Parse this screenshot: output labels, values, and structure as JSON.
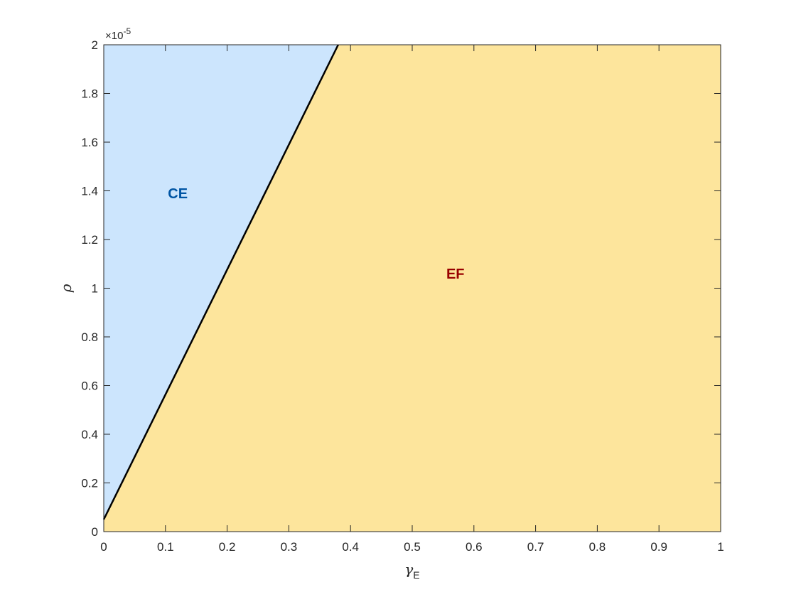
{
  "chart_data": {
    "type": "area",
    "title": "",
    "xlabel": {
      "symbol": "γ",
      "subscript": "E"
    },
    "ylabel": "ρ",
    "xlim": [
      0,
      1
    ],
    "ylim": [
      0,
      2e-05
    ],
    "y_multiplier": {
      "base": "×10",
      "exponent": "-5"
    },
    "x_ticks": [
      "0",
      "0.1",
      "0.2",
      "0.3",
      "0.4",
      "0.5",
      "0.6",
      "0.7",
      "0.8",
      "0.9",
      "1"
    ],
    "x_tick_values": [
      0,
      0.1,
      0.2,
      0.3,
      0.4,
      0.5,
      0.6,
      0.7,
      0.8,
      0.9,
      1
    ],
    "y_ticks": [
      "0",
      "0.2",
      "0.4",
      "0.6",
      "0.8",
      "1",
      "1.2",
      "1.4",
      "1.6",
      "1.8",
      "2"
    ],
    "y_tick_values": [
      0,
      2e-06,
      4e-06,
      6e-06,
      8e-06,
      1e-05,
      1.2e-05,
      1.4e-05,
      1.6e-05,
      1.8e-05,
      2e-05
    ],
    "boundary": {
      "x": [
        0,
        0.38
      ],
      "y": [
        5e-07,
        2e-05
      ]
    },
    "regions": [
      {
        "name": "CE",
        "side": "above boundary",
        "fill": "#cce5fd",
        "label_color": "#0055a4",
        "label_x": 0.12,
        "label_y": 1.37e-05
      },
      {
        "name": "EF",
        "side": "below boundary",
        "fill": "#fde59c",
        "label_color": "#990000",
        "label_x": 0.57,
        "label_y": 1.04e-05
      }
    ],
    "grid": false,
    "legend": "none",
    "colors": {
      "axis": "#262626",
      "boundary": "#000000"
    }
  }
}
